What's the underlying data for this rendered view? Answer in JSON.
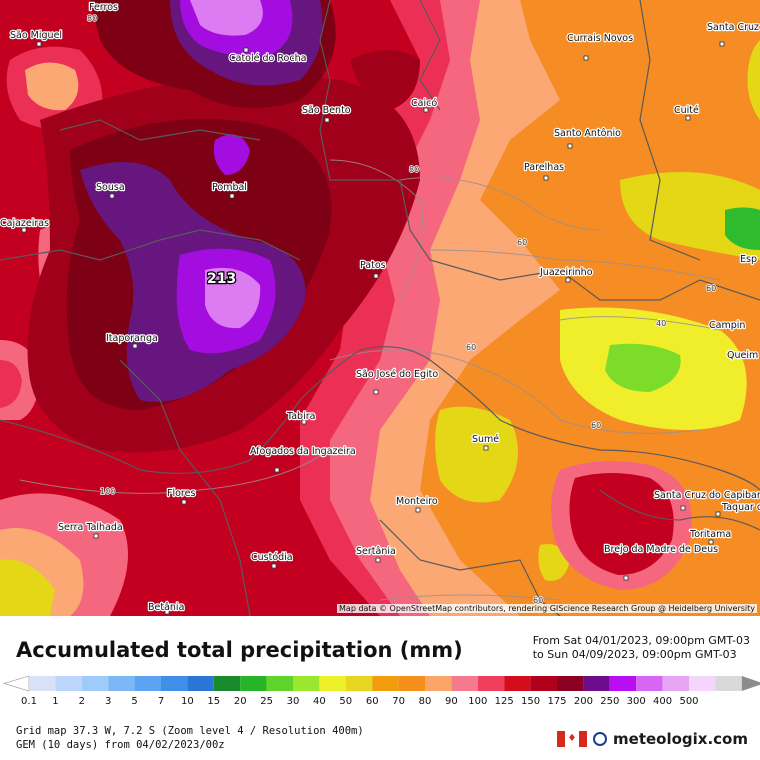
{
  "map": {
    "max_value": "213",
    "attribution": "Map data © OpenStreetMap contributors, rendering GIScience Research Group @ Heidelberg University",
    "places": [
      {
        "name": "Ferros"
      },
      {
        "name": "São Miguel"
      },
      {
        "name": "Catolé do Rocha",
        "line2": ""
      },
      {
        "name": "São Bento"
      },
      {
        "name": "Caicó"
      },
      {
        "name": "Currais Novos"
      },
      {
        "name": "Santa Cruz"
      },
      {
        "name": "Cuité"
      },
      {
        "name": "Santo Antônio"
      },
      {
        "name": "Parelhas"
      },
      {
        "name": "Sousa"
      },
      {
        "name": "Pombal"
      },
      {
        "name": "Cajazeiras"
      },
      {
        "name": "Patos"
      },
      {
        "name": "Juazeirinho"
      },
      {
        "name": "Esp"
      },
      {
        "name": "Campin"
      },
      {
        "name": "Queim"
      },
      {
        "name": "Itaporanga"
      },
      {
        "name": "São José do Egito"
      },
      {
        "name": "Tabira"
      },
      {
        "name": "Sumé"
      },
      {
        "name": "Afogados da Ingazeira"
      },
      {
        "name": "Flores"
      },
      {
        "name": "Monteiro"
      },
      {
        "name": "Santa Cruz do Capibaribe"
      },
      {
        "name": "Taquar do Nor"
      },
      {
        "name": "Toritama"
      },
      {
        "name": "Serra Talhada"
      },
      {
        "name": "Custódia"
      },
      {
        "name": "Sertânia"
      },
      {
        "name": "Brejo da Madre de Deus"
      },
      {
        "name": "Betânia"
      }
    ],
    "isolines": [
      "80",
      "80",
      "60",
      "60",
      "60",
      "40",
      "60",
      "100",
      "60",
      "60",
      "60",
      "100"
    ]
  },
  "panel": {
    "title": "Accumulated total precipitation (mm)",
    "period_from": "From Sat 04/01/2023, 09:00pm GMT-03",
    "period_to": "to Sun 04/09/2023, 09:00pm GMT-03",
    "meta_line1": "Grid map 37.3 W, 7.2 S (Zoom level 4 / Resolution 400m)",
    "meta_line2": "GEM (10 days) from 04/02/2023/00z",
    "brand": "meteologix.com"
  },
  "legend": {
    "ticks": [
      "0.1",
      "1",
      "2",
      "3",
      "5",
      "7",
      "10",
      "15",
      "20",
      "25",
      "30",
      "40",
      "50",
      "60",
      "70",
      "80",
      "90",
      "100",
      "125",
      "150",
      "175",
      "200",
      "250",
      "300",
      "400",
      "500"
    ],
    "colors": [
      "#d8e2f6",
      "#bcd6fb",
      "#9ecbf9",
      "#7cb7f7",
      "#5ca3f2",
      "#3f8ee8",
      "#2a75d6",
      "#1a8a2c",
      "#27b527",
      "#5fd42a",
      "#9be62f",
      "#eef02a",
      "#e7d51f",
      "#f39c0c",
      "#f68e1c",
      "#fba468",
      "#f57a8d",
      "#f03e5c",
      "#d30c1e",
      "#b0001c",
      "#8b0020",
      "#6c0d8c",
      "#b80ef0",
      "#d866f2",
      "#e7a5f6",
      "#f4d6fa",
      "#d9d9d9"
    ]
  },
  "colors": {
    "c100": "#c3001f",
    "c125": "#a0001a",
    "c150": "#7e0014",
    "c175": "#67167f",
    "c200": "#a40de0",
    "c250": "#dc7bf2",
    "c90": "#ec2f55",
    "c80": "#f5677f",
    "c70": "#fba874",
    "c60": "#f58d24",
    "c50": "#ec7b0f",
    "c40": "#e3d716",
    "c30": "#f0ee2a",
    "c25": "#7ddc2a",
    "c20": "#2fbb2e"
  }
}
